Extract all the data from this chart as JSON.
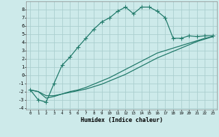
{
  "xlabel": "Humidex (Indice chaleur)",
  "background_color": "#cdeaea",
  "grid_color": "#aacece",
  "line_color": "#1e7868",
  "xlim": [
    -0.5,
    23.5
  ],
  "ylim": [
    -4.2,
    9.0
  ],
  "xticks": [
    0,
    1,
    2,
    3,
    4,
    5,
    6,
    7,
    8,
    9,
    10,
    11,
    12,
    13,
    14,
    15,
    16,
    17,
    18,
    19,
    20,
    21,
    22,
    23
  ],
  "yticks": [
    -4,
    -3,
    -2,
    -1,
    0,
    1,
    2,
    3,
    4,
    5,
    6,
    7,
    8
  ],
  "line1_x": [
    0,
    1,
    2,
    3,
    4,
    5,
    6,
    7,
    8,
    9,
    10,
    11,
    12,
    13,
    14,
    15,
    16,
    17,
    18,
    19,
    20,
    21,
    22,
    23
  ],
  "line1_y": [
    -1.8,
    -3.0,
    -3.3,
    -1.0,
    1.2,
    2.2,
    3.4,
    4.5,
    5.6,
    6.5,
    7.0,
    7.8,
    8.3,
    7.5,
    8.3,
    8.3,
    7.8,
    7.0,
    4.5,
    4.5,
    4.8,
    4.7,
    4.8,
    4.8
  ],
  "line2_x": [
    0,
    1,
    2,
    3,
    4,
    5,
    6,
    7,
    8,
    9,
    10,
    11,
    12,
    13,
    14,
    15,
    16,
    17,
    18,
    19,
    20,
    21,
    22,
    23
  ],
  "line2_y": [
    -1.8,
    -2.0,
    -2.8,
    -2.6,
    -2.3,
    -2.0,
    -1.8,
    -1.5,
    -1.1,
    -0.7,
    -0.3,
    0.2,
    0.7,
    1.2,
    1.7,
    2.2,
    2.7,
    3.0,
    3.3,
    3.6,
    3.9,
    4.2,
    4.5,
    4.7
  ],
  "line3_x": [
    0,
    1,
    2,
    3,
    4,
    5,
    6,
    7,
    8,
    9,
    10,
    11,
    12,
    13,
    14,
    15,
    16,
    17,
    18,
    19,
    20,
    21,
    22,
    23
  ],
  "line3_y": [
    -1.8,
    -2.0,
    -2.5,
    -2.5,
    -2.3,
    -2.1,
    -1.9,
    -1.7,
    -1.4,
    -1.1,
    -0.7,
    -0.3,
    0.1,
    0.6,
    1.1,
    1.6,
    2.1,
    2.5,
    2.9,
    3.3,
    3.7,
    4.1,
    4.4,
    4.7
  ]
}
